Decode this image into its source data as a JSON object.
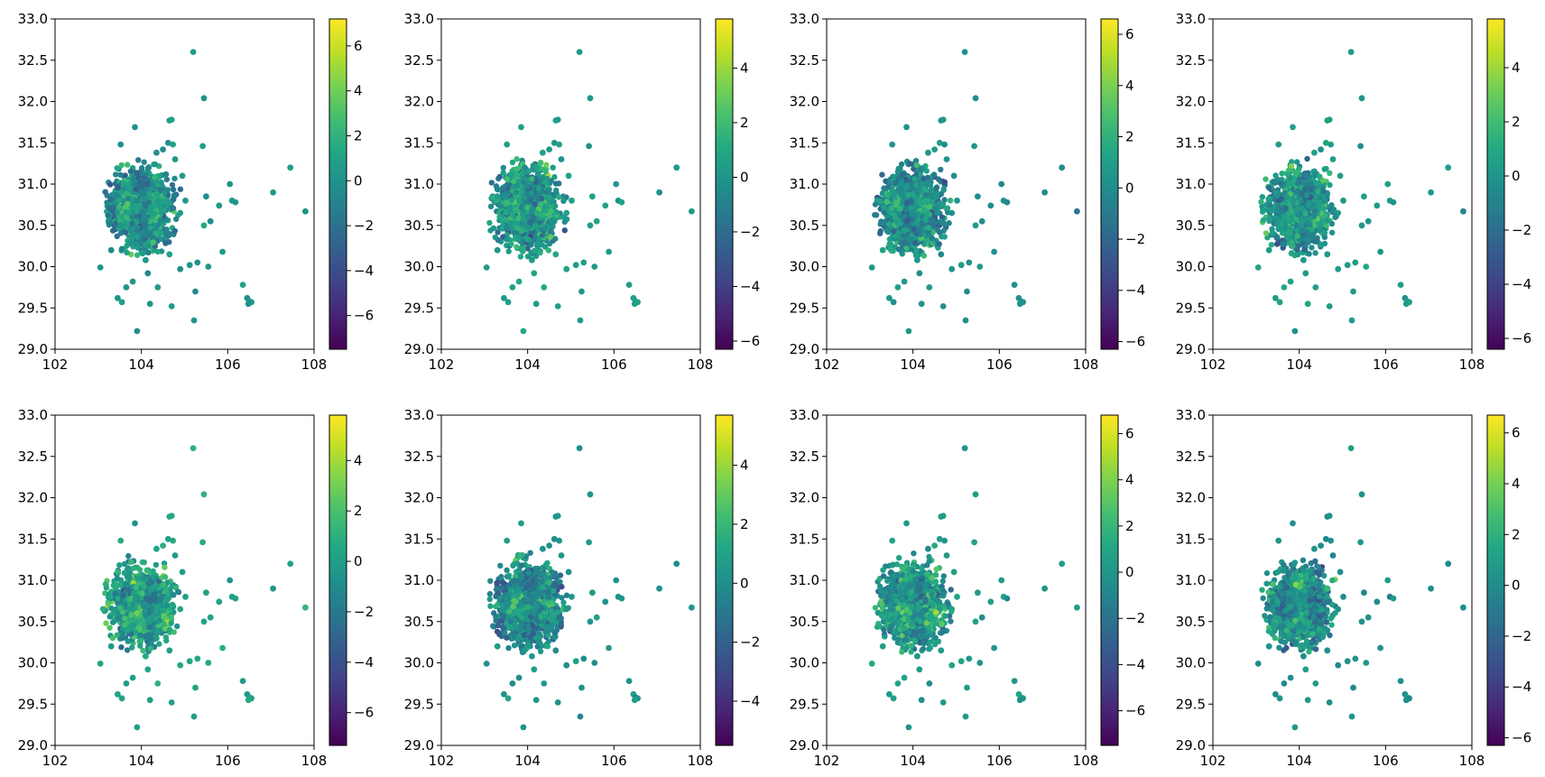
{
  "chart_data": [
    {
      "type": "scatter",
      "xlim": [
        102,
        108
      ],
      "ylim": [
        29.0,
        33.0
      ],
      "xticks": [
        "102",
        "104",
        "106",
        "108"
      ],
      "yticks": [
        "29.0",
        "29.5",
        "30.0",
        "30.5",
        "31.0",
        "31.5",
        "32.0",
        "32.5",
        "33.0"
      ],
      "colormap": "viridis",
      "clim": [
        -7.5,
        7.2
      ],
      "colorbar_ticks": [
        "6",
        "4",
        "2",
        "0",
        "−2",
        "−4",
        "−6"
      ],
      "seed": 11
    },
    {
      "type": "scatter",
      "xlim": [
        102,
        108
      ],
      "ylim": [
        29.0,
        33.0
      ],
      "xticks": [
        "102",
        "104",
        "106",
        "108"
      ],
      "yticks": [
        "29.0",
        "29.5",
        "30.0",
        "30.5",
        "31.0",
        "31.5",
        "32.0",
        "32.5",
        "33.0"
      ],
      "colormap": "viridis",
      "clim": [
        -6.3,
        5.8
      ],
      "colorbar_ticks": [
        "4",
        "2",
        "0",
        "−2",
        "−4",
        "−6"
      ],
      "seed": 23
    },
    {
      "type": "scatter",
      "xlim": [
        102,
        108
      ],
      "ylim": [
        29.0,
        33.0
      ],
      "xticks": [
        "102",
        "104",
        "106",
        "108"
      ],
      "yticks": [
        "29.0",
        "29.5",
        "30.0",
        "30.5",
        "31.0",
        "31.5",
        "32.0",
        "32.5",
        "33.0"
      ],
      "colormap": "viridis",
      "clim": [
        -6.3,
        6.6
      ],
      "colorbar_ticks": [
        "6",
        "4",
        "2",
        "0",
        "−2",
        "−4",
        "−6"
      ],
      "seed": 37
    },
    {
      "type": "scatter",
      "xlim": [
        102,
        108
      ],
      "ylim": [
        29.0,
        33.0
      ],
      "xticks": [
        "102",
        "104",
        "106",
        "108"
      ],
      "yticks": [
        "29.0",
        "29.5",
        "30.0",
        "30.5",
        "31.0",
        "31.5",
        "32.0",
        "32.5",
        "33.0"
      ],
      "colormap": "viridis",
      "clim": [
        -6.4,
        5.8
      ],
      "colorbar_ticks": [
        "4",
        "2",
        "0",
        "−2",
        "−4",
        "−6"
      ],
      "seed": 41
    },
    {
      "type": "scatter",
      "xlim": [
        102,
        108
      ],
      "ylim": [
        29.0,
        33.0
      ],
      "xticks": [
        "102",
        "104",
        "106",
        "108"
      ],
      "yticks": [
        "29.0",
        "29.5",
        "30.0",
        "30.5",
        "31.0",
        "31.5",
        "32.0",
        "32.5",
        "33.0"
      ],
      "colormap": "viridis",
      "clim": [
        -7.3,
        5.8
      ],
      "colorbar_ticks": [
        "4",
        "2",
        "0",
        "−2",
        "−4",
        "−6"
      ],
      "seed": 53
    },
    {
      "type": "scatter",
      "xlim": [
        102,
        108
      ],
      "ylim": [
        29.0,
        33.0
      ],
      "xticks": [
        "102",
        "104",
        "106",
        "108"
      ],
      "yticks": [
        "29.0",
        "29.5",
        "30.0",
        "30.5",
        "31.0",
        "31.5",
        "32.0",
        "32.5",
        "33.0"
      ],
      "colormap": "viridis",
      "clim": [
        -5.5,
        5.7
      ],
      "colorbar_ticks": [
        "4",
        "2",
        "0",
        "−2",
        "−4"
      ],
      "seed": 67
    },
    {
      "type": "scatter",
      "xlim": [
        102,
        108
      ],
      "ylim": [
        29.0,
        33.0
      ],
      "xticks": [
        "102",
        "104",
        "106",
        "108"
      ],
      "yticks": [
        "29.0",
        "29.5",
        "30.0",
        "30.5",
        "31.0",
        "31.5",
        "32.0",
        "32.5",
        "33.0"
      ],
      "colormap": "viridis",
      "clim": [
        -7.5,
        6.8
      ],
      "colorbar_ticks": [
        "6",
        "4",
        "2",
        "0",
        "−2",
        "−4",
        "−6"
      ],
      "seed": 79
    },
    {
      "type": "scatter",
      "xlim": [
        102,
        108
      ],
      "ylim": [
        29.0,
        33.0
      ],
      "xticks": [
        "102",
        "104",
        "106",
        "108"
      ],
      "yticks": [
        "29.0",
        "29.5",
        "30.0",
        "30.5",
        "31.0",
        "31.5",
        "32.0",
        "32.5",
        "33.0"
      ],
      "colormap": "viridis",
      "clim": [
        -6.3,
        6.7
      ],
      "colorbar_ticks": [
        "6",
        "4",
        "2",
        "0",
        "−2",
        "−4",
        "−6"
      ],
      "seed": 83
    }
  ],
  "scatter_shape": {
    "isolated_points": [
      [
        105.2,
        32.6
      ],
      [
        105.45,
        32.04
      ],
      [
        105.42,
        31.46
      ],
      [
        107.45,
        31.2
      ],
      [
        107.8,
        30.67
      ],
      [
        107.05,
        30.9
      ],
      [
        106.05,
        31.0
      ],
      [
        106.1,
        30.8
      ],
      [
        106.18,
        30.78
      ],
      [
        105.8,
        30.74
      ],
      [
        105.5,
        30.85
      ],
      [
        105.6,
        30.55
      ],
      [
        105.45,
        30.5
      ],
      [
        105.88,
        30.18
      ],
      [
        105.55,
        30.0
      ],
      [
        106.35,
        29.78
      ],
      [
        106.45,
        29.62
      ],
      [
        106.5,
        29.58
      ],
      [
        106.55,
        29.57
      ],
      [
        106.48,
        29.55
      ],
      [
        105.3,
        30.05
      ],
      [
        105.25,
        29.7
      ],
      [
        105.22,
        29.35
      ],
      [
        104.7,
        29.52
      ],
      [
        104.2,
        29.55
      ],
      [
        103.9,
        29.22
      ],
      [
        103.55,
        29.57
      ],
      [
        103.45,
        29.62
      ],
      [
        103.65,
        29.75
      ],
      [
        103.8,
        29.82
      ],
      [
        103.05,
        29.99
      ],
      [
        104.38,
        29.75
      ],
      [
        104.9,
        29.97
      ],
      [
        104.15,
        29.92
      ],
      [
        104.78,
        31.3
      ],
      [
        104.65,
        31.77
      ],
      [
        104.7,
        31.78
      ],
      [
        104.62,
        31.5
      ],
      [
        104.73,
        31.48
      ],
      [
        104.95,
        31.1
      ],
      [
        105.02,
        30.8
      ],
      [
        104.9,
        30.65
      ],
      [
        103.85,
        31.69
      ],
      [
        103.52,
        31.48
      ],
      [
        103.3,
        30.2
      ],
      [
        104.5,
        31.42
      ],
      [
        104.35,
        31.38
      ],
      [
        104.1,
        30.08
      ],
      [
        104.65,
        30.15
      ],
      [
        105.12,
        30.02
      ]
    ]
  }
}
